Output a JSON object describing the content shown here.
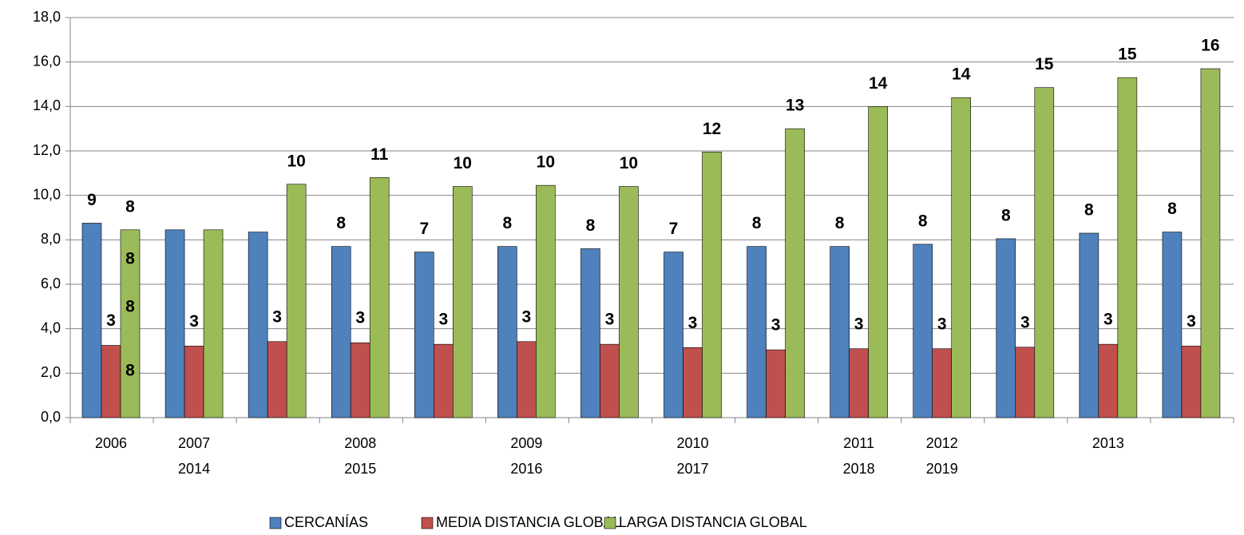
{
  "chart_data": {
    "type": "bar",
    "categories": [
      "2006",
      [
        "2007",
        "2014"
      ],
      null,
      [
        "2008",
        "2015"
      ],
      null,
      [
        "2009",
        "2016"
      ],
      null,
      [
        "2010",
        "2017"
      ],
      null,
      [
        "2011",
        "2018"
      ],
      [
        "2012",
        "2019"
      ],
      null,
      "2013",
      null
    ],
    "series": [
      {
        "name": "CERCANÍAS",
        "color": "#4f81bd",
        "values": [
          8.75,
          8.45,
          8.35,
          7.7,
          7.45,
          7.7,
          7.6,
          7.45,
          7.7,
          7.7,
          7.8,
          8.05,
          8.3,
          8.35
        ],
        "value_labels": [
          "9",
          null,
          null,
          "8",
          "7",
          "8",
          "8",
          "7",
          "8",
          "8",
          "8",
          "8",
          "8",
          "8"
        ]
      },
      {
        "name": "MEDIA DISTANCIA GLOBAL",
        "color": "#c0504d",
        "values": [
          3.25,
          3.22,
          3.42,
          3.37,
          3.3,
          3.42,
          3.3,
          3.15,
          3.05,
          3.1,
          3.1,
          3.17,
          3.3,
          3.22
        ],
        "value_labels": [
          "3",
          "3",
          "3",
          "3",
          "3",
          "3",
          "3",
          "3",
          "3",
          "3",
          "3",
          "3",
          "3",
          "3"
        ]
      },
      {
        "name": "LARGA DISTANCIA GLOBAL",
        "color": "#9bbb59",
        "values": [
          8.45,
          8.45,
          10.5,
          10.8,
          10.4,
          10.45,
          10.4,
          11.95,
          13.0,
          14.0,
          14.4,
          14.85,
          15.3,
          15.7
        ],
        "value_labels": [
          "8",
          null,
          "10",
          "11",
          "10",
          "10",
          "10",
          "12",
          "13",
          "14",
          "14",
          "15",
          "15",
          "16"
        ]
      }
    ],
    "annotations": [
      "8",
      "8",
      "8"
    ],
    "ylim": [
      0,
      18
    ],
    "yticks": [
      {
        "value": 0,
        "label": "0,0"
      },
      {
        "value": 2,
        "label": "2,0"
      },
      {
        "value": 4,
        "label": "4,0"
      },
      {
        "value": 6,
        "label": "6,0"
      },
      {
        "value": 8,
        "label": "8,0"
      },
      {
        "value": 10,
        "label": "10,0"
      },
      {
        "value": 12,
        "label": "12,0"
      },
      {
        "value": 14,
        "label": "14,0"
      },
      {
        "value": 16,
        "label": "16,0"
      },
      {
        "value": 18,
        "label": "18,0"
      }
    ],
    "grid": true,
    "legend": "bottom"
  }
}
